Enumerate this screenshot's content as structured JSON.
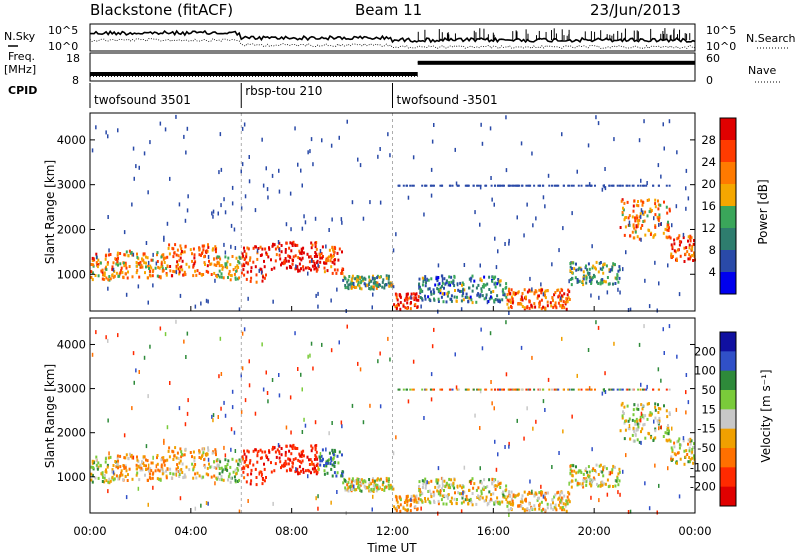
{
  "header": {
    "station": "Blackstone (fitACF)",
    "beam": "Beam 11",
    "date": "23/Jun/2013"
  },
  "panel_labels": {
    "nsky": "N.Sky",
    "freq_line1": "Freq.",
    "freq_line2": "[MHz]",
    "cpid": "CPID",
    "nsearch": "N.Search",
    "nave": "Nave"
  },
  "noise_axis": {
    "top": "10^5",
    "bottom": "10^0"
  },
  "freq_axis": {
    "top": "18",
    "bottom": "8"
  },
  "nave_axis": {
    "top": "60",
    "bottom": "0"
  },
  "cpid_segments": [
    {
      "label": "twofsound 3501",
      "start_hour": 0.0
    },
    {
      "label": "rbsp-tou 210",
      "start_hour": 6.0
    },
    {
      "label": "twofsound -3501",
      "start_hour": 12.0
    }
  ],
  "range_axis": {
    "label": "Slant Range [km]",
    "ticks": [
      "1000",
      "2000",
      "3000",
      "4000"
    ]
  },
  "time_axis": {
    "label": "Time UT",
    "ticks": [
      "00:00",
      "04:00",
      "08:00",
      "12:00",
      "16:00",
      "20:00",
      "00:00"
    ]
  },
  "power_colorbar": {
    "label": "Power [dB]",
    "ticks": [
      "28",
      "24",
      "20",
      "16",
      "12",
      "8",
      "4"
    ],
    "colors": [
      "#0000ee",
      "#2a4aa8",
      "#2e7d6e",
      "#3aa65a",
      "#f5a700",
      "#ff7a00",
      "#ff3b00",
      "#e00000"
    ]
  },
  "velocity_colorbar": {
    "label": "Velocity [m s⁻¹]",
    "ticks": [
      "200",
      "100",
      "50",
      "15",
      "-15",
      "-50",
      "-100",
      "-200"
    ],
    "colors": [
      "#1010a0",
      "#3050c8",
      "#2e8a3a",
      "#7acb3a",
      "#c8c8c8",
      "#f0a000",
      "#ff7000",
      "#ff2a00",
      "#e00000"
    ]
  },
  "chart_data": {
    "type": "heatmap",
    "title": "Blackstone (fitACF)",
    "x_range_hours": [
      0,
      24
    ],
    "y_range_km": [
      180,
      4600
    ],
    "xlabel": "Time UT",
    "ylabel": "Slant Range [km]",
    "freq_mhz": [
      {
        "from": 0,
        "to": 13,
        "value": 10.5
      },
      {
        "from": 13,
        "to": 24,
        "value": 14.5
      }
    ],
    "nave": [
      {
        "from": 0,
        "to": 13,
        "value": 10
      },
      {
        "from": 13,
        "to": 24,
        "value": 40
      }
    ],
    "scatter_bands": [
      {
        "from": 0.0,
        "to": 1.0,
        "range_km": [
          900,
          1500
        ],
        "power_db": 22,
        "velocity": 5
      },
      {
        "from": 1.0,
        "to": 3.0,
        "range_km": [
          950,
          1550
        ],
        "power_db": 20,
        "velocity": -40
      },
      {
        "from": 3.0,
        "to": 5.0,
        "range_km": [
          1000,
          1700
        ],
        "power_db": 24,
        "velocity": -30
      },
      {
        "from": 5.0,
        "to": 6.0,
        "range_km": [
          900,
          1500
        ],
        "power_db": 18,
        "velocity": 20
      },
      {
        "from": 6.0,
        "to": 7.0,
        "range_km": [
          850,
          1650
        ],
        "power_db": 28,
        "velocity": -150
      },
      {
        "from": 7.0,
        "to": 9.0,
        "range_km": [
          1100,
          1750
        ],
        "power_db": 30,
        "velocity": -180
      },
      {
        "from": 9.0,
        "to": 10.0,
        "range_km": [
          1050,
          1650
        ],
        "power_db": 26,
        "velocity": 80
      },
      {
        "from": 10.0,
        "to": 12.0,
        "range_km": [
          700,
          1000
        ],
        "power_db": 14,
        "velocity": 0
      },
      {
        "from": 12.0,
        "to": 13.0,
        "range_km": [
          250,
          600
        ],
        "power_db": 28,
        "velocity": -40
      },
      {
        "from": 13.0,
        "to": 16.5,
        "range_km": [
          400,
          1000
        ],
        "power_db": 10,
        "velocity": 0
      },
      {
        "from": 16.5,
        "to": 19.0,
        "range_km": [
          250,
          700
        ],
        "power_db": 24,
        "velocity": -30
      },
      {
        "from": 19.0,
        "to": 21.0,
        "range_km": [
          800,
          1300
        ],
        "power_db": 12,
        "velocity": 0
      },
      {
        "from": 21.0,
        "to": 23.0,
        "range_km": [
          1800,
          2700
        ],
        "power_db": 22,
        "velocity": 10
      },
      {
        "from": 23.0,
        "to": 24.0,
        "range_km": [
          1300,
          1900
        ],
        "power_db": 26,
        "velocity": 0
      }
    ]
  }
}
